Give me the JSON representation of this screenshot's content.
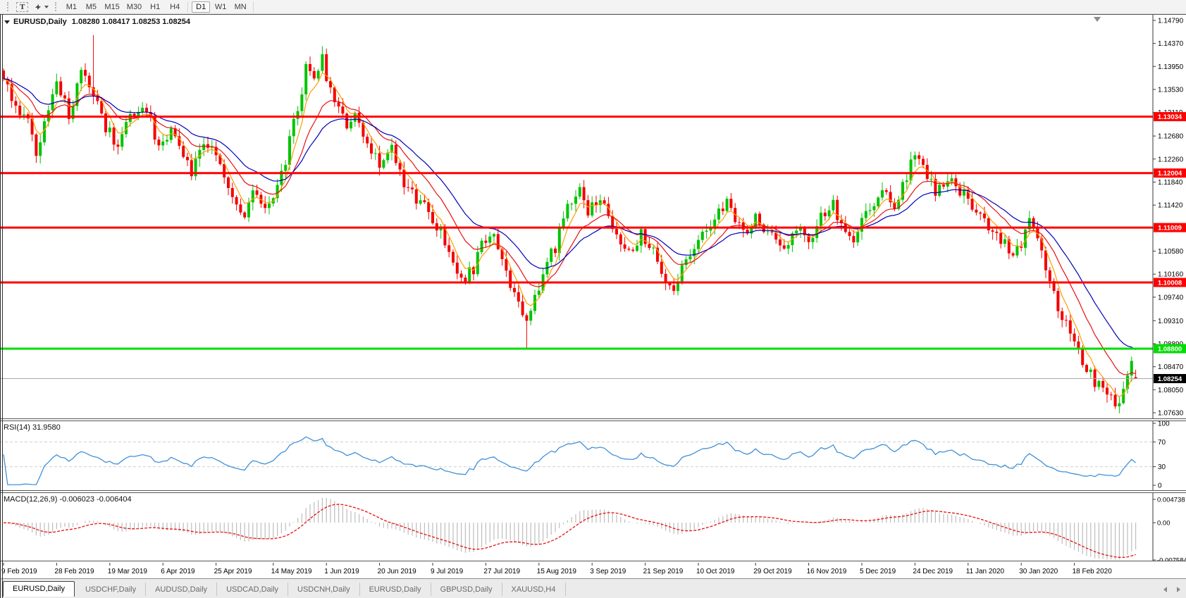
{
  "toolbar": {
    "text_tool_label": "T",
    "timeframes": [
      "M1",
      "M5",
      "M15",
      "M30",
      "H1",
      "H4",
      "D1",
      "W1",
      "MN"
    ],
    "active_timeframe": "D1"
  },
  "chart": {
    "symbol_line": {
      "symbol": "EURUSD,Daily",
      "ohlc": "1.08280 1.08417 1.08253 1.08254"
    },
    "axis_max": 1.1479,
    "axis_min": 1.0763,
    "levels": [
      {
        "price": 1.13034,
        "label": "1.13034",
        "color": "#ff0000",
        "type": "resistance"
      },
      {
        "price": 1.12004,
        "label": "1.12004",
        "color": "#ff0000",
        "type": "resistance"
      },
      {
        "price": 1.11009,
        "label": "1.11009",
        "color": "#ff0000",
        "type": "resistance"
      },
      {
        "price": 1.10008,
        "label": "1.10008",
        "color": "#ff0000",
        "type": "resistance"
      },
      {
        "price": 1.088,
        "label": "1.08800",
        "color": "#00dd00",
        "type": "support"
      }
    ],
    "current_price": 1.08254,
    "current_price_label": "1.08254",
    "current_price_line_color": "#a8a8a8"
  },
  "chart_data": {
    "type": "candlestick",
    "symbol": "EURUSD",
    "period": "Daily",
    "bars": 278,
    "bar_spacing_px": 5.8,
    "bull_color": "#00c400",
    "bear_color": "#f40000",
    "y_tick_labels": [
      "1.14790",
      "1.14370",
      "1.13950",
      "1.13530",
      "1.13110",
      "1.12680",
      "1.12260",
      "1.11840",
      "1.11420",
      "1.11000",
      "1.10580",
      "1.10160",
      "1.09740",
      "1.09310",
      "1.08890",
      "1.08470",
      "1.08050",
      "1.07630"
    ],
    "x_tick_labels": [
      "9 Feb 2019",
      "28 Feb 2019",
      "19 Mar 2019",
      "6 Apr 2019",
      "25 Apr 2019",
      "14 May 2019",
      "1 Jun 2019",
      "20 Jun 2019",
      "9 Jul 2019",
      "27 Jul 2019",
      "15 Aug 2019",
      "3 Sep 2019",
      "21 Sep 2019",
      "10 Oct 2019",
      "29 Oct 2019",
      "16 Nov 2019",
      "5 Dec 2019",
      "24 Dec 2019",
      "11 Jan 2020",
      "30 Jan 2020",
      "18 Feb 2020"
    ],
    "x_tick_bar_index": [
      0,
      13,
      26,
      39,
      52,
      66,
      79,
      92,
      105,
      118,
      131,
      144,
      157,
      170,
      184,
      197,
      210,
      223,
      236,
      249,
      262
    ],
    "close_waypoints": [
      [
        0,
        1.1362
      ],
      [
        3,
        1.133
      ],
      [
        6,
        1.129
      ],
      [
        8,
        1.124
      ],
      [
        11,
        1.131
      ],
      [
        13,
        1.1375
      ],
      [
        16,
        1.1304
      ],
      [
        19,
        1.1395
      ],
      [
        22,
        1.135
      ],
      [
        25,
        1.1285
      ],
      [
        28,
        1.1253
      ],
      [
        31,
        1.1311
      ],
      [
        35,
        1.1317
      ],
      [
        38,
        1.1246
      ],
      [
        41,
        1.1272
      ],
      [
        44,
        1.123
      ],
      [
        46,
        1.1201
      ],
      [
        49,
        1.1259
      ],
      [
        53,
        1.1214
      ],
      [
        56,
        1.1156
      ],
      [
        59,
        1.1111
      ],
      [
        61,
        1.1169
      ],
      [
        65,
        1.1137
      ],
      [
        68,
        1.1195
      ],
      [
        72,
        1.1323
      ],
      [
        74,
        1.1388
      ],
      [
        76,
        1.1362
      ],
      [
        78,
        1.1407
      ],
      [
        81,
        1.1323
      ],
      [
        84,
        1.1285
      ],
      [
        86,
        1.1311
      ],
      [
        89,
        1.1259
      ],
      [
        92,
        1.1221
      ],
      [
        95,
        1.124
      ],
      [
        98,
        1.1175
      ],
      [
        101,
        1.1156
      ],
      [
        104,
        1.113
      ],
      [
        107,
        1.1092
      ],
      [
        110,
        1.104
      ],
      [
        112,
        1.1002
      ],
      [
        115,
        1.1027
      ],
      [
        117,
        1.1072
      ],
      [
        120,
        1.1092
      ],
      [
        122,
        1.104
      ],
      [
        125,
        1.0976
      ],
      [
        128,
        1.0931
      ],
      [
        130,
        1.0976
      ],
      [
        133,
        1.104
      ],
      [
        135,
        1.1066
      ],
      [
        138,
        1.1143
      ],
      [
        141,
        1.1175
      ],
      [
        143,
        1.113
      ],
      [
        146,
        1.1156
      ],
      [
        148,
        1.1117
      ],
      [
        151,
        1.1079
      ],
      [
        153,
        1.1053
      ],
      [
        156,
        1.1092
      ],
      [
        159,
        1.106
      ],
      [
        161,
        1.1015
      ],
      [
        164,
        1.0976
      ],
      [
        166,
        1.1027
      ],
      [
        169,
        1.1066
      ],
      [
        172,
        1.1092
      ],
      [
        174,
        1.1117
      ],
      [
        177,
        1.1143
      ],
      [
        179,
        1.1117
      ],
      [
        182,
        1.1092
      ],
      [
        184,
        1.113
      ],
      [
        187,
        1.1092
      ],
      [
        190,
        1.106
      ],
      [
        192,
        1.1079
      ],
      [
        195,
        1.1105
      ],
      [
        197,
        1.1079
      ],
      [
        200,
        1.1117
      ],
      [
        203,
        1.1143
      ],
      [
        205,
        1.1105
      ],
      [
        208,
        1.1079
      ],
      [
        210,
        1.1117
      ],
      [
        213,
        1.1143
      ],
      [
        216,
        1.1169
      ],
      [
        218,
        1.1143
      ],
      [
        221,
        1.1188
      ],
      [
        223,
        1.124
      ],
      [
        226,
        1.1201
      ],
      [
        228,
        1.1169
      ],
      [
        231,
        1.1188
      ],
      [
        234,
        1.1169
      ],
      [
        236,
        1.115
      ],
      [
        239,
        1.1124
      ],
      [
        241,
        1.1105
      ],
      [
        244,
        1.1079
      ],
      [
        247,
        1.1047
      ],
      [
        249,
        1.1072
      ],
      [
        251,
        1.1117
      ],
      [
        253,
        1.109
      ],
      [
        255,
        1.102
      ],
      [
        258,
        1.096
      ],
      [
        261,
        1.0905
      ],
      [
        264,
        1.086
      ],
      [
        267,
        1.082
      ],
      [
        270,
        1.079
      ],
      [
        272,
        1.0778
      ],
      [
        274,
        1.08
      ],
      [
        275,
        1.082
      ],
      [
        276,
        1.0858
      ],
      [
        277,
        1.0825
      ]
    ],
    "wick_events": [
      {
        "i": 22,
        "high": 1.1452
      },
      {
        "i": 128,
        "low": 1.088
      },
      {
        "i": 272,
        "low": 1.077
      }
    ],
    "last_bar": {
      "open": 1.0828,
      "high": 1.08417,
      "low": 1.08253,
      "close": 1.08254
    },
    "moving_averages": [
      {
        "period": 5,
        "color": "#ff9c00"
      },
      {
        "period": 13,
        "color": "#e81010"
      },
      {
        "period": 24,
        "color": "#0000bb"
      }
    ],
    "indicators": [
      {
        "name": "RSI",
        "period": 14,
        "current": 31.958,
        "color": "#4090d8",
        "levels": [
          70,
          30
        ]
      },
      {
        "name": "MACD",
        "fast": 12,
        "slow": 26,
        "signal": 9,
        "current_macd": -0.006023,
        "current_signal": -0.006404,
        "histogram_color": "#bdbdbd",
        "signal_color": "#e81010"
      }
    ]
  },
  "rsi_panel": {
    "label": "RSI(14) 31.9580",
    "axis_ticks": [
      "100",
      "70",
      "30",
      "0"
    ],
    "axis_max": 100,
    "axis_min": 0
  },
  "macd_panel": {
    "label": "MACD(12,26,9) -0.006023 -0.006404",
    "axis_ticks": [
      "0.004738",
      "0.00",
      "-0.007584"
    ],
    "axis_max": 0.004738,
    "axis_min": -0.007584
  },
  "tabs": {
    "items": [
      {
        "label": "EURUSD,Daily",
        "active": true
      },
      {
        "label": "USDCHF,Daily",
        "active": false
      },
      {
        "label": "AUDUSD,Daily",
        "active": false
      },
      {
        "label": "USDCAD,Daily",
        "active": false
      },
      {
        "label": "USDCNH,Daily",
        "active": false
      },
      {
        "label": "EURUSD,Daily",
        "active": false
      },
      {
        "label": "GBPUSD,Daily",
        "active": false
      },
      {
        "label": "XAUUSD,H4",
        "active": false
      }
    ]
  }
}
